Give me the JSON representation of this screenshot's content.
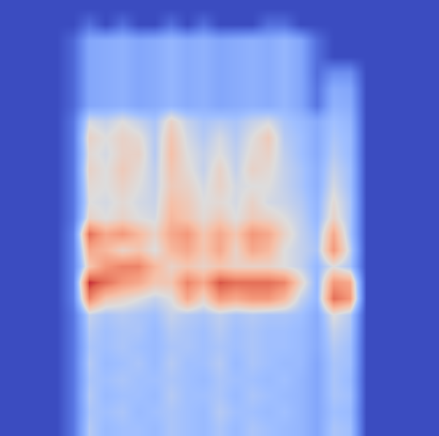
{
  "chart_data": {
    "type": "heatmap",
    "tick_labels": false,
    "grid": false,
    "xlim": [
      -0.5,
      26.5
    ],
    "ylim": [
      -0.5,
      26.5
    ],
    "zlim": [
      0,
      100
    ],
    "z": [
      [
        0,
        0,
        0,
        0,
        12,
        42,
        36,
        38,
        38,
        36,
        40,
        38,
        36,
        40,
        36,
        40,
        38,
        36,
        34,
        28,
        40,
        38,
        0,
        0,
        0,
        0,
        0
      ],
      [
        0,
        0,
        0,
        0,
        12,
        40,
        38,
        40,
        36,
        38,
        40,
        38,
        36,
        42,
        38,
        38,
        36,
        38,
        34,
        28,
        38,
        36,
        0,
        0,
        0,
        0,
        0
      ],
      [
        0,
        0,
        0,
        0,
        12,
        42,
        36,
        38,
        38,
        36,
        42,
        38,
        38,
        40,
        36,
        40,
        38,
        36,
        34,
        28,
        40,
        38,
        0,
        0,
        0,
        0,
        0
      ],
      [
        0,
        0,
        0,
        0,
        12,
        40,
        38,
        40,
        38,
        38,
        40,
        38,
        36,
        40,
        38,
        38,
        36,
        38,
        34,
        28,
        40,
        36,
        0,
        0,
        0,
        0,
        0
      ],
      [
        0,
        0,
        0,
        0,
        12,
        42,
        36,
        38,
        40,
        36,
        42,
        38,
        38,
        42,
        36,
        40,
        38,
        36,
        36,
        28,
        40,
        38,
        0,
        0,
        0,
        0,
        0
      ],
      [
        0,
        0,
        0,
        0,
        12,
        40,
        38,
        40,
        38,
        36,
        40,
        40,
        38,
        40,
        38,
        40,
        38,
        38,
        36,
        30,
        42,
        38,
        0,
        0,
        0,
        0,
        0
      ],
      [
        0,
        0,
        0,
        0,
        12,
        42,
        38,
        40,
        40,
        36,
        42,
        40,
        38,
        42,
        38,
        40,
        38,
        38,
        36,
        30,
        45,
        40,
        0,
        0,
        0,
        0,
        0
      ],
      [
        0,
        0,
        0,
        0,
        12,
        45,
        40,
        42,
        40,
        38,
        45,
        42,
        40,
        44,
        40,
        42,
        40,
        40,
        38,
        30,
        50,
        42,
        0,
        0,
        0,
        0,
        0
      ],
      [
        0,
        0,
        0,
        0,
        15,
        80,
        60,
        55,
        50,
        45,
        50,
        70,
        55,
        75,
        70,
        75,
        75,
        65,
        45,
        35,
        85,
        75,
        0,
        0,
        0,
        0,
        0
      ],
      [
        0,
        0,
        0,
        0,
        15,
        95,
        85,
        75,
        70,
        60,
        60,
        80,
        70,
        90,
        85,
        85,
        85,
        80,
        55,
        35,
        75,
        70,
        0,
        0,
        0,
        0,
        0
      ],
      [
        0,
        0,
        0,
        0,
        15,
        60,
        75,
        80,
        80,
        65,
        55,
        60,
        55,
        60,
        55,
        55,
        55,
        50,
        45,
        35,
        50,
        40,
        0,
        0,
        0,
        0,
        0
      ],
      [
        0,
        0,
        0,
        0,
        15,
        70,
        65,
        55,
        60,
        50,
        65,
        70,
        60,
        70,
        55,
        70,
        65,
        50,
        45,
        40,
        75,
        45,
        0,
        0,
        0,
        0,
        0
      ],
      [
        0,
        0,
        0,
        0,
        15,
        85,
        70,
        75,
        65,
        55,
        70,
        75,
        60,
        70,
        60,
        75,
        70,
        55,
        45,
        38,
        70,
        40,
        0,
        0,
        0,
        0,
        0
      ],
      [
        0,
        0,
        0,
        0,
        12,
        55,
        50,
        55,
        50,
        48,
        65,
        60,
        52,
        58,
        50,
        58,
        55,
        50,
        44,
        35,
        55,
        40,
        0,
        0,
        0,
        0,
        0
      ],
      [
        0,
        0,
        0,
        0,
        12,
        50,
        48,
        52,
        48,
        46,
        62,
        58,
        50,
        52,
        48,
        55,
        48,
        46,
        42,
        34,
        52,
        40,
        0,
        0,
        0,
        0,
        0
      ],
      [
        0,
        0,
        0,
        0,
        12,
        52,
        50,
        55,
        50,
        45,
        58,
        55,
        48,
        55,
        48,
        50,
        50,
        45,
        40,
        32,
        48,
        38,
        0,
        0,
        0,
        0,
        0
      ],
      [
        0,
        0,
        0,
        0,
        12,
        55,
        50,
        58,
        52,
        44,
        60,
        52,
        45,
        55,
        45,
        55,
        52,
        45,
        40,
        32,
        45,
        38,
        0,
        0,
        0,
        0,
        0
      ],
      [
        0,
        0,
        0,
        0,
        12,
        52,
        48,
        55,
        55,
        42,
        62,
        50,
        45,
        50,
        44,
        52,
        55,
        44,
        38,
        30,
        42,
        36,
        0,
        0,
        0,
        0,
        0
      ],
      [
        0,
        0,
        0,
        0,
        12,
        55,
        50,
        55,
        52,
        42,
        60,
        48,
        42,
        48,
        42,
        50,
        58,
        42,
        38,
        30,
        40,
        36,
        0,
        0,
        0,
        0,
        0
      ],
      [
        0,
        0,
        0,
        0,
        12,
        48,
        45,
        50,
        45,
        40,
        55,
        45,
        40,
        42,
        40,
        45,
        48,
        40,
        36,
        30,
        38,
        34,
        0,
        0,
        0,
        0,
        0
      ],
      [
        0,
        0,
        0,
        0,
        8,
        28,
        30,
        32,
        28,
        30,
        34,
        30,
        32,
        28,
        30,
        32,
        30,
        34,
        28,
        12,
        32,
        30,
        0,
        0,
        0,
        0,
        0
      ],
      [
        0,
        0,
        0,
        0,
        8,
        28,
        30,
        32,
        28,
        30,
        34,
        30,
        32,
        28,
        30,
        32,
        30,
        34,
        28,
        12,
        30,
        28,
        0,
        0,
        0,
        0,
        0
      ],
      [
        0,
        0,
        0,
        0,
        8,
        28,
        30,
        32,
        28,
        30,
        34,
        30,
        32,
        28,
        30,
        32,
        30,
        34,
        28,
        10,
        20,
        20,
        0,
        0,
        0,
        0,
        0
      ],
      [
        0,
        0,
        0,
        0,
        8,
        28,
        30,
        32,
        28,
        30,
        34,
        30,
        32,
        28,
        30,
        32,
        30,
        34,
        28,
        10,
        0,
        0,
        0,
        0,
        0,
        0,
        0
      ],
      [
        0,
        0,
        0,
        0,
        8,
        28,
        30,
        32,
        28,
        30,
        34,
        30,
        32,
        28,
        30,
        32,
        30,
        34,
        28,
        10,
        0,
        0,
        0,
        0,
        0,
        0,
        0
      ],
      [
        0,
        0,
        0,
        0,
        0,
        10,
        0,
        10,
        0,
        0,
        10,
        0,
        10,
        0,
        0,
        0,
        10,
        10,
        0,
        0,
        0,
        0,
        0,
        0,
        0,
        0,
        0
      ],
      [
        0,
        0,
        0,
        0,
        0,
        0,
        0,
        0,
        0,
        0,
        0,
        0,
        0,
        0,
        0,
        0,
        0,
        0,
        0,
        0,
        0,
        0,
        0,
        0,
        0,
        0,
        0
      ]
    ]
  }
}
